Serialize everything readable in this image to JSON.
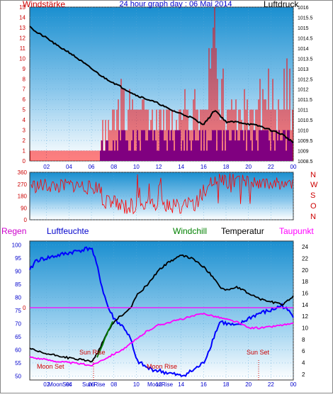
{
  "header": {
    "left_label": "Windstärke",
    "title": "24 hour graph day : 06 Mai 2014",
    "right_label": "Luftdruck"
  },
  "direction_labels": [
    "N",
    "W",
    "S",
    "O",
    "N"
  ],
  "bottom_labels": {
    "regen": "Regen",
    "luftfeuchte": "Luftfeuchte",
    "windchill": "Windchill",
    "temperatur": "Temperatur",
    "taupunkt": "Taupunkt"
  },
  "astro_labels": {
    "sun_rise": "Sun Rise",
    "sun_set": "Sun Set",
    "moon_set": "Moon Set",
    "moon_rise": "Moon Rise",
    "x_moonset_overlay": "MoonSet",
    "x_sunrise_overlay": "Sun Rise",
    "x_moonrise_overlay": "MoonRise"
  },
  "rain_value_label": "0",
  "colors": {
    "panel_top": "#1a8fd0",
    "panel_bottom": "#ffffff",
    "wind": "#ff0000",
    "gust": "#0000ff",
    "pressure": "#000000",
    "humidity": "#0000ff",
    "temperature": "#000000",
    "dewpoint": "#ff00ff",
    "windchill": "#008000",
    "rain": "#ff00ff",
    "axis_label_blue": "#0000cc",
    "label_red": "#cc0000"
  },
  "chart_data": [
    {
      "type": "line",
      "name": "wind-pressure",
      "x_ticks": [
        "02",
        "04",
        "06",
        "08",
        "10",
        "12",
        "14",
        "16",
        "18",
        "20",
        "22",
        "00"
      ],
      "x_range_hours": [
        0.5,
        24.0
      ],
      "left_axis": {
        "label": "Windstärke",
        "ticks": [
          0,
          1,
          2,
          3,
          4,
          5,
          6,
          7,
          8,
          9,
          10,
          11,
          12,
          13,
          14,
          15
        ],
        "range": [
          0,
          15
        ]
      },
      "right_axis": {
        "label": "Luftdruck",
        "ticks": [
          "1008.5",
          "1009",
          "1009.5",
          "1010",
          "1010.5",
          "1011",
          "1011.5",
          "1012",
          "1012.5",
          "1013",
          "1013.5",
          "1014",
          "1014.5",
          "1015",
          "1015.5",
          "1016"
        ],
        "range": [
          1008.5,
          1016
        ]
      },
      "series": [
        {
          "role": "wind",
          "x": [
            0.5,
            2,
            4,
            6,
            6.8,
            7,
            8,
            9,
            10,
            11,
            12,
            13,
            14,
            15,
            16,
            16.5,
            17,
            17.5,
            18,
            19,
            20,
            21,
            22,
            23,
            24
          ],
          "values": [
            1,
            1,
            1,
            1,
            1,
            3,
            5,
            5,
            5,
            5,
            5,
            5,
            5,
            5,
            5,
            5,
            10,
            6,
            5,
            5,
            5,
            5,
            5,
            5,
            5
          ]
        },
        {
          "role": "gust",
          "x": [
            6.8,
            7,
            9,
            10,
            11,
            12,
            13,
            14,
            15,
            16,
            17,
            18,
            19,
            20,
            21,
            22,
            23,
            24
          ],
          "values": [
            1,
            2,
            3,
            3,
            3,
            3,
            3,
            3,
            3,
            3,
            3,
            3,
            3,
            3,
            3,
            3,
            3,
            3
          ]
        },
        {
          "x": [
            0.5,
            1,
            2,
            3,
            4,
            5,
            6,
            7,
            8,
            9,
            10,
            11,
            12,
            13,
            14,
            15,
            15.5,
            16,
            16.5,
            17,
            17.5,
            18,
            18.5,
            19,
            20,
            21,
            22,
            23,
            24
          ],
          "values": [
            1015.1,
            1014.8,
            1014.5,
            1014.1,
            1013.8,
            1013.4,
            1013.0,
            1012.6,
            1012.3,
            1012.0,
            1011.7,
            1011.5,
            1011.3,
            1011.0,
            1010.8,
            1010.6,
            1010.4,
            1010.3,
            1010.6,
            1011.0,
            1010.7,
            1010.4,
            1010.4,
            1010.4,
            1010.3,
            1010.2,
            1010.0,
            1009.8,
            1009.4
          ]
        }
      ]
    },
    {
      "type": "line",
      "name": "wind-direction",
      "x_ticks": [
        "02",
        "04",
        "06",
        "08",
        "10",
        "12",
        "14",
        "16",
        "18",
        "20",
        "22",
        "00"
      ],
      "y_ticks": [
        0,
        90,
        180,
        270,
        360
      ],
      "ylim": [
        0,
        360
      ],
      "series": [
        {
          "x": [
            0.5,
            1,
            2,
            3,
            4,
            5,
            6,
            6.8,
            7,
            8,
            9,
            10,
            11,
            12,
            13,
            14,
            15,
            16,
            16.5,
            17,
            18,
            19,
            20,
            21,
            22,
            23,
            24
          ],
          "values": [
            270,
            255,
            260,
            250,
            262,
            258,
            240,
            250,
            130,
            120,
            110,
            115,
            120,
            110,
            105,
            100,
            110,
            200,
            280,
            300,
            290,
            290,
            285,
            290,
            270,
            280,
            260
          ]
        }
      ]
    },
    {
      "type": "line",
      "name": "humidity-temperature",
      "x_ticks": [
        "02",
        "04",
        "06",
        "08",
        "10",
        "12",
        "14",
        "16",
        "18",
        "20",
        "22",
        "00"
      ],
      "left_axis": {
        "label": "Luftfeuchte",
        "ticks": [
          50,
          55,
          60,
          65,
          70,
          75,
          80,
          85,
          90,
          95,
          100
        ],
        "range": [
          48.5,
          101.5
        ]
      },
      "right_axis": {
        "label": "Temperatur",
        "ticks": [
          2,
          4,
          6,
          8,
          10,
          12,
          14,
          16,
          18,
          20,
          22,
          24
        ],
        "range": [
          1,
          25
        ]
      },
      "series": [
        {
          "role": "humidity",
          "x": [
            0.5,
            1,
            2,
            3,
            4,
            5,
            6,
            6.5,
            7,
            7.5,
            8,
            8.5,
            9,
            9.5,
            10,
            11,
            12,
            13,
            14,
            15,
            16,
            16.5,
            17,
            17.5,
            18,
            19,
            20,
            21,
            22,
            23,
            23.5,
            24
          ],
          "values": [
            90,
            94,
            95,
            96,
            97,
            98,
            99,
            92,
            83,
            76,
            72,
            70,
            68,
            64,
            56,
            53,
            52,
            51,
            50,
            52,
            55,
            60,
            66,
            71,
            70,
            69,
            72,
            74,
            75,
            77,
            75,
            73
          ]
        },
        {
          "role": "temperature",
          "x": [
            0.5,
            1,
            2,
            3,
            4,
            5,
            6,
            6.5,
            7,
            7.5,
            8,
            8.5,
            9,
            9.5,
            10,
            11,
            12,
            13,
            14,
            15,
            16,
            17,
            17.5,
            18,
            19,
            20,
            21,
            22,
            23,
            24
          ],
          "values": [
            6.5,
            6.0,
            5.5,
            5.2,
            4.8,
            4.5,
            4.2,
            5.5,
            7.5,
            9.5,
            11.0,
            12.0,
            12.5,
            13.5,
            15.5,
            17.5,
            20.0,
            21.5,
            22.5,
            22.0,
            20.5,
            18.5,
            17.0,
            16.5,
            17.0,
            16.0,
            15.0,
            14.5,
            14.0,
            15.5
          ]
        },
        {
          "role": "dewpoint",
          "x": [
            0.5,
            1,
            2,
            3,
            4,
            5,
            6,
            7,
            8,
            9,
            10,
            11,
            12,
            13,
            14,
            15,
            16,
            17,
            18,
            19,
            20,
            21,
            22,
            23,
            24
          ],
          "values": [
            5.0,
            4.8,
            4.5,
            4.2,
            4.0,
            3.8,
            3.5,
            4.5,
            5.5,
            6.5,
            8.0,
            9.5,
            10.5,
            11.0,
            11.5,
            12.0,
            12.5,
            12.0,
            11.5,
            11.0,
            10.0,
            10.0,
            10.2,
            10.5,
            10.7
          ]
        },
        {
          "role": "windchill",
          "x": [
            6.5,
            7,
            7.5,
            8
          ],
          "values": [
            5.0,
            7.2,
            9.5,
            11.5
          ]
        },
        {
          "role": "rain",
          "x": [
            0.5,
            24
          ],
          "values": [
            0,
            0
          ]
        }
      ]
    }
  ]
}
